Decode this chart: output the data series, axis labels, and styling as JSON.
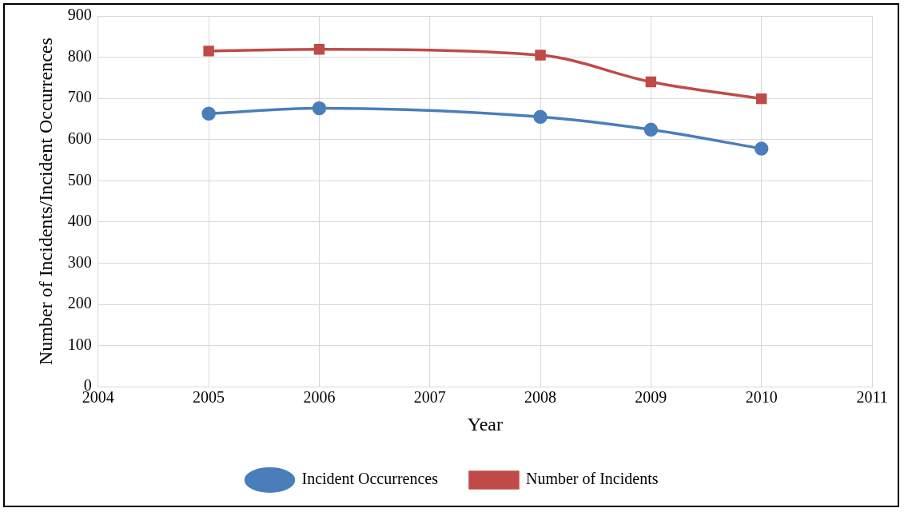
{
  "chart_data": {
    "type": "line",
    "xlabel": "Year",
    "ylabel": "Number of Incidents/Incident Occurrences",
    "x": [
      2005,
      2006,
      2008,
      2009,
      2010
    ],
    "series": [
      {
        "name": "Incident Occurrences",
        "color": "#4a7ebb",
        "marker": "circle",
        "values": [
          663,
          676,
          655,
          624,
          578
        ]
      },
      {
        "name": "Number of Incidents",
        "color": "#be4b48",
        "marker": "square",
        "values": [
          815,
          819,
          805,
          740,
          699
        ]
      }
    ],
    "xlim": [
      2004,
      2011
    ],
    "xticks": [
      2004,
      2005,
      2006,
      2007,
      2008,
      2009,
      2010,
      2011
    ],
    "ylim": [
      0,
      900
    ],
    "yticks": [
      0,
      100,
      200,
      300,
      400,
      500,
      600,
      700,
      800,
      900
    ],
    "grid": true,
    "legend": "bottom"
  }
}
